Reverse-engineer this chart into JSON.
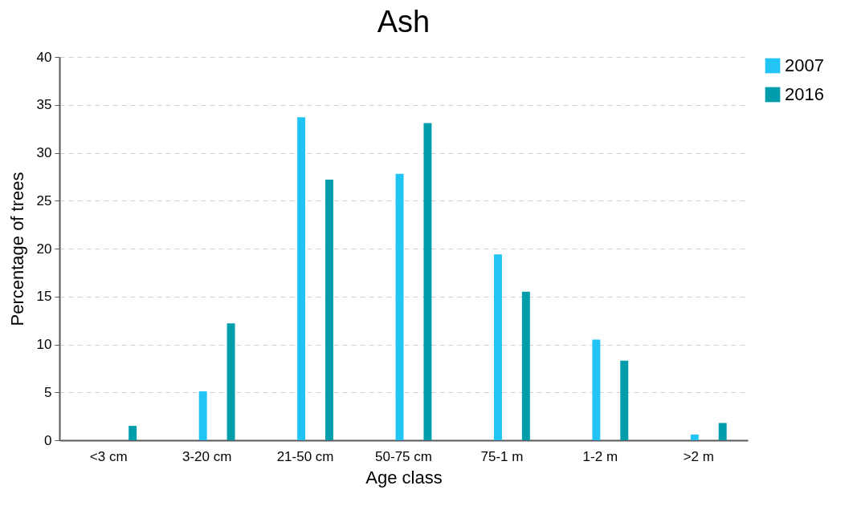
{
  "chart_data": {
    "type": "bar",
    "title": "Ash",
    "xlabel": "Age class",
    "ylabel": "Percentage of trees",
    "categories": [
      "<3 cm",
      "3-20 cm",
      "21-50 cm",
      "50-75 cm",
      "75-1 m",
      "1-2 m",
      ">2 m"
    ],
    "series": [
      {
        "name": "2007",
        "color": "#21c4f3",
        "values": [
          null,
          5.1,
          33.7,
          27.8,
          19.4,
          10.5,
          0.6
        ]
      },
      {
        "name": "2016",
        "color": "#019dab",
        "values": [
          1.5,
          12.2,
          27.2,
          33.1,
          15.5,
          8.3,
          1.8
        ]
      }
    ],
    "ylim": [
      0,
      40
    ],
    "yticks": [
      0,
      5,
      10,
      15,
      20,
      25,
      30,
      35,
      40
    ],
    "grid": "y",
    "legend": "right"
  }
}
